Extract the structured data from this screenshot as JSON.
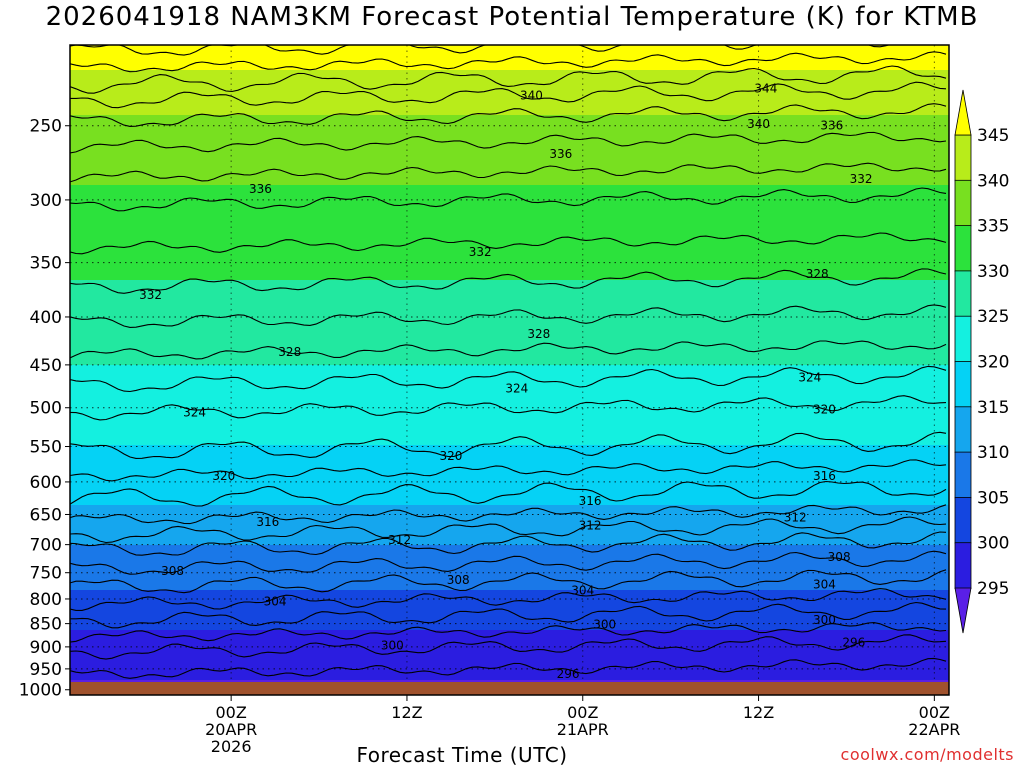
{
  "title": "2026041918 NAM3KM Forecast Potential Temperature (K) for KTMB",
  "xlabel": "Forecast Time (UTC)",
  "credit": "coolwx.com/modelts",
  "colors": {
    "ground": "#a0522d",
    "fill_levels": [
      {
        "min": 290,
        "max": 295,
        "color": "#5a1fe6"
      },
      {
        "min": 295,
        "max": 300,
        "color": "#2b1de0"
      },
      {
        "min": 300,
        "max": 305,
        "color": "#1446e0"
      },
      {
        "min": 305,
        "max": 310,
        "color": "#1a78e8"
      },
      {
        "min": 310,
        "max": 315,
        "color": "#15a6ee"
      },
      {
        "min": 315,
        "max": 320,
        "color": "#05d2f5"
      },
      {
        "min": 320,
        "max": 325,
        "color": "#14f0e0"
      },
      {
        "min": 325,
        "max": 330,
        "color": "#22e8a0"
      },
      {
        "min": 330,
        "max": 335,
        "color": "#2ce23c"
      },
      {
        "min": 335,
        "max": 340,
        "color": "#78e020"
      },
      {
        "min": 340,
        "max": 345,
        "color": "#b8ec1a"
      },
      {
        "min": 345,
        "max": 350,
        "color": "#ffff00"
      }
    ]
  },
  "chart_data": {
    "type": "heatmap",
    "title": "2026041918 NAM3KM Forecast Potential Temperature (K) for KTMB",
    "xlabel": "Forecast Time (UTC)",
    "ylabel": "",
    "y_scale": "log-pressure",
    "y_ticks": [
      250,
      300,
      350,
      400,
      450,
      500,
      550,
      600,
      650,
      700,
      750,
      800,
      850,
      900,
      950,
      1000
    ],
    "y_range_hPa": [
      205,
      1013
    ],
    "x_range_hours": [
      -5,
      55
    ],
    "x_ticks": [
      {
        "hour": 6,
        "lines": [
          "00Z",
          "20APR",
          "2026"
        ]
      },
      {
        "hour": 18,
        "lines": [
          "12Z"
        ]
      },
      {
        "hour": 30,
        "lines": [
          "00Z",
          "21APR"
        ]
      },
      {
        "hour": 42,
        "lines": [
          "12Z"
        ]
      },
      {
        "hour": 54,
        "lines": [
          "00Z",
          "22APR"
        ]
      }
    ],
    "colorbar_ticks": [
      345,
      340,
      335,
      330,
      325,
      320,
      315,
      310,
      305,
      300,
      295
    ],
    "contour_interval_K": 4,
    "contour_labels": [
      {
        "value": "344",
        "hour": 42.5,
        "p": 228
      },
      {
        "value": "340",
        "hour": 26.5,
        "p": 232
      },
      {
        "value": "340",
        "hour": 42.0,
        "p": 249
      },
      {
        "value": "336",
        "hour": 47.0,
        "p": 250
      },
      {
        "value": "336",
        "hour": 28.5,
        "p": 268
      },
      {
        "value": "336",
        "hour": 8.0,
        "p": 292
      },
      {
        "value": "332",
        "hour": 49.0,
        "p": 285
      },
      {
        "value": "332",
        "hour": 23.0,
        "p": 341
      },
      {
        "value": "332",
        "hour": 0.5,
        "p": 379
      },
      {
        "value": "328",
        "hour": 46.0,
        "p": 360
      },
      {
        "value": "328",
        "hour": 10.0,
        "p": 436
      },
      {
        "value": "328",
        "hour": 27.0,
        "p": 417
      },
      {
        "value": "324",
        "hour": 45.5,
        "p": 464
      },
      {
        "value": "324",
        "hour": 25.5,
        "p": 477
      },
      {
        "value": "324",
        "hour": 3.5,
        "p": 506
      },
      {
        "value": "320",
        "hour": 46.5,
        "p": 502
      },
      {
        "value": "320",
        "hour": 21.0,
        "p": 563
      },
      {
        "value": "320",
        "hour": 5.5,
        "p": 591
      },
      {
        "value": "316",
        "hour": 46.5,
        "p": 591
      },
      {
        "value": "316",
        "hour": 30.5,
        "p": 629
      },
      {
        "value": "316",
        "hour": 8.5,
        "p": 662
      },
      {
        "value": "312",
        "hour": 44.5,
        "p": 655
      },
      {
        "value": "312",
        "hour": 30.5,
        "p": 668
      },
      {
        "value": "312",
        "hour": 17.5,
        "p": 692
      },
      {
        "value": "308",
        "hour": 47.5,
        "p": 722
      },
      {
        "value": "308",
        "hour": 21.5,
        "p": 764
      },
      {
        "value": "308",
        "hour": 2.0,
        "p": 747
      },
      {
        "value": "304",
        "hour": 46.5,
        "p": 772
      },
      {
        "value": "304",
        "hour": 30.0,
        "p": 784
      },
      {
        "value": "304",
        "hour": 9.0,
        "p": 805
      },
      {
        "value": "300",
        "hour": 46.5,
        "p": 842
      },
      {
        "value": "300",
        "hour": 31.5,
        "p": 852
      },
      {
        "value": "300",
        "hour": 17.0,
        "p": 897
      },
      {
        "value": "296",
        "hour": 48.5,
        "p": 890
      },
      {
        "value": "296",
        "hour": 29.0,
        "p": 962
      }
    ]
  }
}
